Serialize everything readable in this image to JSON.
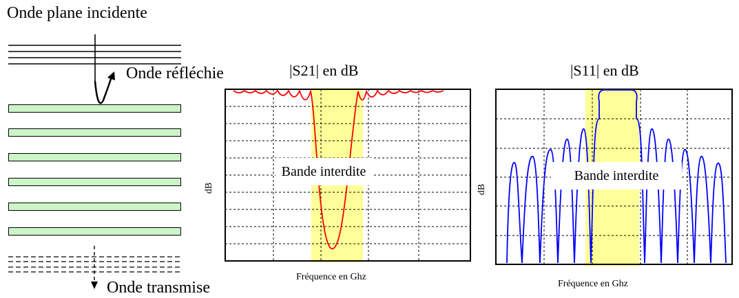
{
  "diagram": {
    "incident_label": "Onde plane incidente",
    "reflected_label": "Onde réfléchie",
    "transmitted_label": "Onde transmise",
    "plate_count": 6,
    "plate_color": "#ccf5c8"
  },
  "chart_data": [
    {
      "type": "line",
      "title": "|S21| en dB",
      "xlabel": "Fréquence en Ghz",
      "ylabel": "dB",
      "band_label": "Bande interdite",
      "line_color": "#ff0000",
      "band_color": "#ffff99",
      "grid": true
    },
    {
      "type": "line",
      "title": "|S11| en dB",
      "xlabel": "Fréquence en Ghz",
      "ylabel": "dB",
      "band_label": "Bande interdite",
      "line_color": "#0000ff",
      "band_color": "#ffff99",
      "grid": true
    }
  ]
}
